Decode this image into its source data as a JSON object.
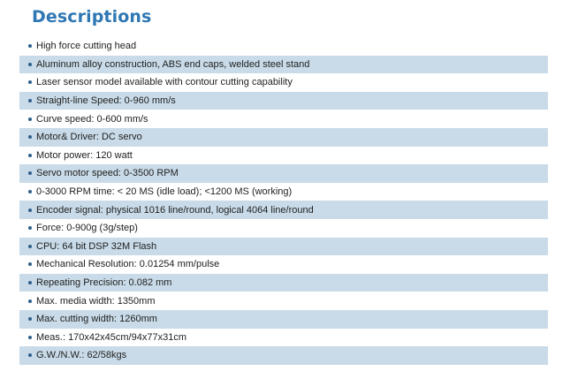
{
  "title": "Descriptions",
  "items": [
    "High force cutting head",
    "Aluminum alloy construction, ABS end caps, welded steel stand",
    "Laser sensor model available with contour cutting capability",
    "Straight-line Speed: 0-960 mm/s",
    "Curve speed: 0-600 mm/s",
    "Motor& Driver: DC servo",
    "Motor power: 120 watt",
    "Servo motor speed: 0-3500 RPM",
    "0-3000 RPM time: < 20 MS (idle load);  <1200 MS (working)",
    "Encoder signal: physical 1016 line/round, logical 4064 line/round",
    "Force: 0-900g (3g/step)",
    "CPU: 64 bit DSP 32M Flash",
    "Mechanical Resolution: 0.01254 mm/pulse",
    "Repeating Precision: 0.082 mm",
    "Max. media width: 1350mm",
    "Max. cutting width: 1260mm",
    "Meas.: 170x42x45cm/94x77x31cm",
    "G.W./N.W.: 62/58kgs"
  ],
  "colors": {
    "title": "#2f78b4",
    "row_shade": "#c9dbe8",
    "bullet": "#2e5f8a",
    "text": "#1e1e1e"
  }
}
